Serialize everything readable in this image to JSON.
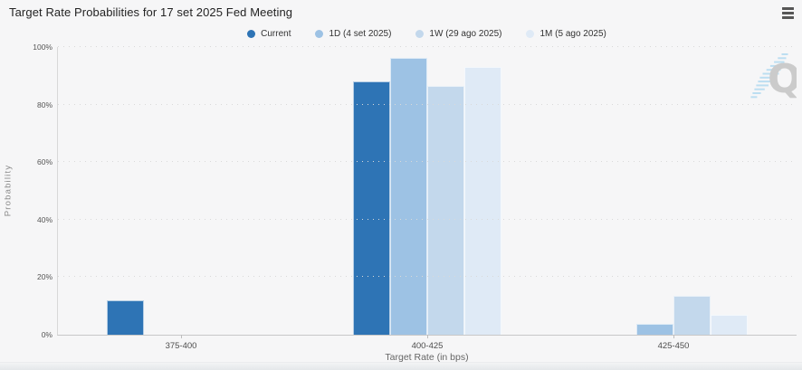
{
  "header": {
    "title": "Target Rate Probabilities for 17 set 2025 Fed Meeting"
  },
  "chart_data": {
    "type": "bar",
    "title": "Target Rate Probabilities for 17 set 2025 Fed Meeting",
    "categories": [
      "375-400",
      "400-425",
      "425-450"
    ],
    "series": [
      {
        "name": "Current",
        "color": "#2e74b5",
        "values": [
          12,
          88,
          0
        ]
      },
      {
        "name": "1D (4 set 2025)",
        "color": "#9dc2e4",
        "values": [
          0,
          96.2,
          3.8
        ]
      },
      {
        "name": "1W (29 ago 2025)",
        "color": "#c3d8ec",
        "values": [
          0,
          86.4,
          13.6
        ]
      },
      {
        "name": "1M (5 ago 2025)",
        "color": "#dfeaf6",
        "values": [
          0,
          93,
          7
        ]
      }
    ],
    "xlabel": "Target Rate (in bps)",
    "ylabel": "Probability",
    "ylim": [
      0,
      100
    ],
    "yticks": [
      "0%",
      "20%",
      "40%",
      "60%",
      "80%",
      "100%"
    ],
    "grid": "dotted-horizontal",
    "legend_position": "top-center"
  },
  "watermark": {
    "letter": "Q",
    "letter_color": "#c9c9c9",
    "stripe_color": "#b9ddf1"
  },
  "colors": {
    "background": "#f6f6f7",
    "axis_line": "#c8c8c8",
    "grid_dot": "#d9d9d9"
  }
}
